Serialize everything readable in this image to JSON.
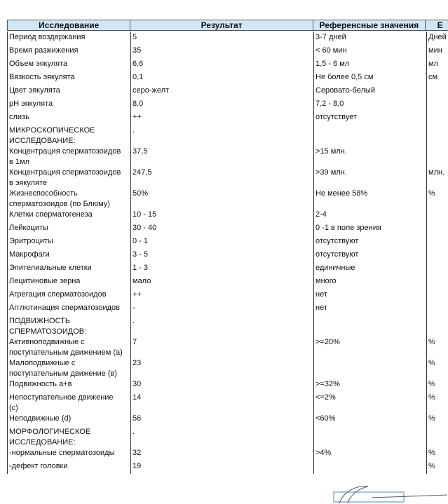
{
  "header": [
    "Исследование",
    "Результат",
    "Референсные значения",
    "Е"
  ],
  "rows": [
    [
      "Период воздержания",
      "5",
      "3-7 дней",
      "Дней"
    ],
    [
      "Время разжижения",
      "35",
      "< 60 мин",
      "мин"
    ],
    [
      "Объем эякулята",
      "6,6",
      "1,5 - 6 мл",
      "мл"
    ],
    [
      "Вязкость эякулята",
      "0,1",
      "Не более 0,5 см",
      "см"
    ],
    [
      "Цвет эякулята",
      "серо-желт",
      "Серовато-белый",
      ""
    ],
    [
      "pH эякулята",
      "8,0",
      "7,2 - 8,0",
      ""
    ],
    [
      "слизь",
      "++",
      "отсутствует",
      ""
    ],
    [
      "МИКРОСКОПИЧЕСКОЕ\nИССЛЕДОВАНИЕ:",
      ".",
      "",
      ""
    ],
    [
      "Концентрация сперматозоидов\nв 1мл",
      "37,5",
      ">15 млн.",
      ""
    ],
    [
      "Концентрация сперматозоидов\nв эякуляте",
      "247,5",
      ">39 млн.",
      "млн."
    ],
    [
      "Жизнеспособность\nсперматозоидов (по Блюму)",
      "50%",
      "Не менее 58%",
      "%"
    ],
    [
      "Клетки сперматогенеза",
      "10 - 15",
      "2-4",
      ""
    ],
    [
      "Лейкоциты",
      "30 - 40",
      "0 -1 в поле зрения",
      ""
    ],
    [
      "Эритроциты",
      "0 - 1",
      "отсутствуют",
      ""
    ],
    [
      "Макрофаги",
      "3 - 5",
      "отсутствуют",
      ""
    ],
    [
      "Эпителиальные клетки",
      "1 - 3",
      "единичные",
      ""
    ],
    [
      "Лецитиновые зерна",
      "мало",
      "много",
      ""
    ],
    [
      "Агрегация сперматозоидов",
      "++",
      "нет",
      ""
    ],
    [
      "Агглютинация сперматозоидов",
      "-",
      "нет",
      ""
    ],
    [
      "ПОДВИЖНОСТЬ\nСПЕРМАТОЗОИДОВ:",
      ".",
      "",
      ""
    ],
    [
      "Активноподвижные с\nпоступательным движением (а)",
      "7",
      ">=20%",
      "%"
    ],
    [
      "Малоподвижные с\nпоступательным движение (в)",
      "23",
      "",
      "%"
    ],
    [
      "Подвижность а+в",
      "30",
      ">=32%",
      "%"
    ],
    [
      "Непоступательное движение\n(с)",
      "14",
      "<=2%",
      "%"
    ],
    [
      "Неподвижные (d)",
      "56",
      "<60%",
      "%"
    ],
    [
      "МОРФОЛОГИЧЕСКОЕ\nИССЛЕДОВАНИЕ:",
      ".",
      "",
      ""
    ],
    [
      "-нормальные сперматозоиды",
      "32",
      ">4%",
      "%"
    ],
    [
      "-дефект головки",
      "19",
      "",
      "%"
    ]
  ],
  "colors": {
    "header_bg": "#d2e7f5",
    "stamp": "#7fb3d5"
  }
}
